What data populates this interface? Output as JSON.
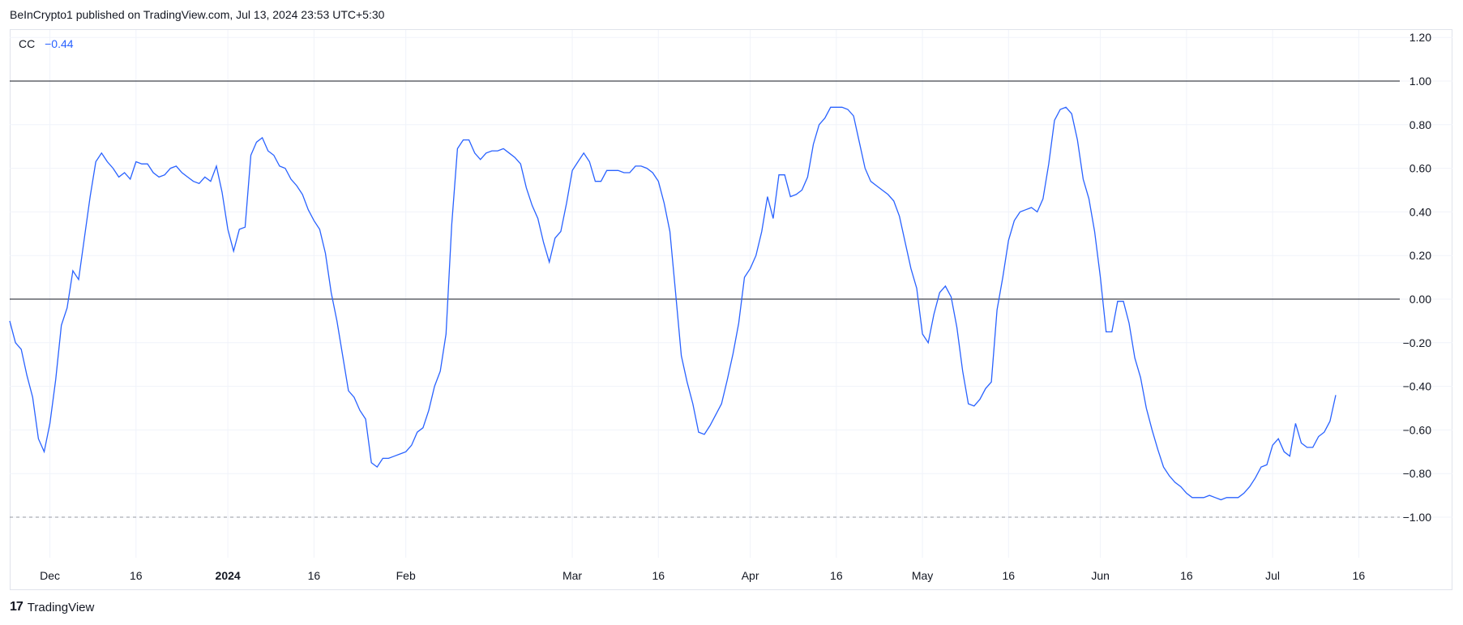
{
  "header": {
    "text": "BeInCrypto1 published on TradingView.com, Jul 13, 2024 23:53 UTC+5:30"
  },
  "legend": {
    "name": "CC",
    "value": "−0.44"
  },
  "footer": {
    "brand": "TradingView",
    "logo_glyph": "17"
  },
  "colors": {
    "line": "#2962ff",
    "grid": "#f0f3fa",
    "border": "#e0e3eb",
    "ref": "#131722",
    "dashed": "#9598a1"
  },
  "chart_data": {
    "type": "line",
    "title": "",
    "xlabel": "",
    "ylabel": "",
    "ylim": [
      -1.3,
      1.3
    ],
    "grid": true,
    "y_ticks": [
      "1.20",
      "1.00",
      "0.80",
      "0.60",
      "0.40",
      "0.20",
      "0.00",
      "−0.20",
      "−0.40",
      "−0.60",
      "−0.80",
      "−1.00"
    ],
    "y_tick_values": [
      1.2,
      1.0,
      0.8,
      0.6,
      0.4,
      0.2,
      0.0,
      -0.2,
      -0.4,
      -0.6,
      -0.8,
      -1.0
    ],
    "x_ticks": [
      "Dec",
      "16",
      "2024",
      "16",
      "Feb",
      "Mar",
      "16",
      "Apr",
      "16",
      "May",
      "16",
      "Jun",
      "16",
      "Jul",
      "16"
    ],
    "x_tick_dates": [
      "2023-12-01",
      "2023-12-16",
      "2024-01-01",
      "2024-01-16",
      "2024-02-01",
      "2024-03-01",
      "2024-03-16",
      "2024-04-01",
      "2024-04-16",
      "2024-05-01",
      "2024-05-16",
      "2024-06-01",
      "2024-06-16",
      "2024-07-01",
      "2024-07-16"
    ],
    "reference_lines": [
      {
        "y": 1.0,
        "style": "solid"
      },
      {
        "y": 0.0,
        "style": "solid"
      },
      {
        "y": -1.0,
        "style": "dashed"
      }
    ],
    "series": [
      {
        "name": "CC",
        "points": [
          [
            "2023-11-24",
            -0.1
          ],
          [
            "2023-11-25",
            -0.2
          ],
          [
            "2023-11-26",
            -0.23
          ],
          [
            "2023-11-27",
            -0.35
          ],
          [
            "2023-11-28",
            -0.45
          ],
          [
            "2023-11-29",
            -0.64
          ],
          [
            "2023-11-30",
            -0.7
          ],
          [
            "2023-12-01",
            -0.57
          ],
          [
            "2023-12-02",
            -0.37
          ],
          [
            "2023-12-03",
            -0.12
          ],
          [
            "2023-12-04",
            -0.04
          ],
          [
            "2023-12-05",
            0.13
          ],
          [
            "2023-12-06",
            0.09
          ],
          [
            "2023-12-07",
            0.28
          ],
          [
            "2023-12-08",
            0.47
          ],
          [
            "2023-12-09",
            0.63
          ],
          [
            "2023-12-10",
            0.67
          ],
          [
            "2023-12-11",
            0.63
          ],
          [
            "2023-12-12",
            0.6
          ],
          [
            "2023-12-13",
            0.56
          ],
          [
            "2023-12-14",
            0.58
          ],
          [
            "2023-12-15",
            0.55
          ],
          [
            "2023-12-16",
            0.63
          ],
          [
            "2023-12-17",
            0.62
          ],
          [
            "2023-12-18",
            0.62
          ],
          [
            "2023-12-19",
            0.58
          ],
          [
            "2023-12-20",
            0.56
          ],
          [
            "2023-12-21",
            0.57
          ],
          [
            "2023-12-22",
            0.6
          ],
          [
            "2023-12-23",
            0.61
          ],
          [
            "2023-12-24",
            0.58
          ],
          [
            "2023-12-25",
            0.56
          ],
          [
            "2023-12-26",
            0.54
          ],
          [
            "2023-12-27",
            0.53
          ],
          [
            "2023-12-28",
            0.56
          ],
          [
            "2023-12-29",
            0.54
          ],
          [
            "2023-12-30",
            0.61
          ],
          [
            "2023-12-31",
            0.49
          ],
          [
            "2024-01-01",
            0.32
          ],
          [
            "2024-01-02",
            0.22
          ],
          [
            "2024-01-03",
            0.32
          ],
          [
            "2024-01-04",
            0.33
          ],
          [
            "2024-01-05",
            0.66
          ],
          [
            "2024-01-06",
            0.72
          ],
          [
            "2024-01-07",
            0.74
          ],
          [
            "2024-01-08",
            0.68
          ],
          [
            "2024-01-09",
            0.66
          ],
          [
            "2024-01-10",
            0.61
          ],
          [
            "2024-01-11",
            0.6
          ],
          [
            "2024-01-12",
            0.55
          ],
          [
            "2024-01-13",
            0.52
          ],
          [
            "2024-01-14",
            0.48
          ],
          [
            "2024-01-15",
            0.41
          ],
          [
            "2024-01-16",
            0.36
          ],
          [
            "2024-01-17",
            0.32
          ],
          [
            "2024-01-18",
            0.21
          ],
          [
            "2024-01-19",
            0.03
          ],
          [
            "2024-01-20",
            -0.1
          ],
          [
            "2024-01-21",
            -0.26
          ],
          [
            "2024-01-22",
            -0.42
          ],
          [
            "2024-01-23",
            -0.45
          ],
          [
            "2024-01-24",
            -0.51
          ],
          [
            "2024-01-25",
            -0.55
          ],
          [
            "2024-01-26",
            -0.75
          ],
          [
            "2024-01-27",
            -0.77
          ],
          [
            "2024-01-28",
            -0.73
          ],
          [
            "2024-01-29",
            -0.73
          ],
          [
            "2024-01-30",
            -0.72
          ],
          [
            "2024-01-31",
            -0.71
          ],
          [
            "2024-02-01",
            -0.7
          ],
          [
            "2024-02-02",
            -0.67
          ],
          [
            "2024-02-03",
            -0.61
          ],
          [
            "2024-02-04",
            -0.59
          ],
          [
            "2024-02-05",
            -0.51
          ],
          [
            "2024-02-06",
            -0.4
          ],
          [
            "2024-02-07",
            -0.33
          ],
          [
            "2024-02-08",
            -0.16
          ],
          [
            "2024-02-09",
            0.34
          ],
          [
            "2024-02-10",
            0.69
          ],
          [
            "2024-02-11",
            0.73
          ],
          [
            "2024-02-12",
            0.73
          ],
          [
            "2024-02-13",
            0.67
          ],
          [
            "2024-02-14",
            0.64
          ],
          [
            "2024-02-15",
            0.67
          ],
          [
            "2024-02-16",
            0.68
          ],
          [
            "2024-02-17",
            0.68
          ],
          [
            "2024-02-18",
            0.69
          ],
          [
            "2024-02-19",
            0.67
          ],
          [
            "2024-02-20",
            0.65
          ],
          [
            "2024-02-21",
            0.62
          ],
          [
            "2024-02-22",
            0.51
          ],
          [
            "2024-02-23",
            0.43
          ],
          [
            "2024-02-24",
            0.37
          ],
          [
            "2024-02-25",
            0.26
          ],
          [
            "2024-02-26",
            0.17
          ],
          [
            "2024-02-27",
            0.28
          ],
          [
            "2024-02-28",
            0.31
          ],
          [
            "2024-02-29",
            0.44
          ],
          [
            "2024-03-01",
            0.59
          ],
          [
            "2024-03-02",
            0.63
          ],
          [
            "2024-03-03",
            0.67
          ],
          [
            "2024-03-04",
            0.63
          ],
          [
            "2024-03-05",
            0.54
          ],
          [
            "2024-03-06",
            0.54
          ],
          [
            "2024-03-07",
            0.59
          ],
          [
            "2024-03-08",
            0.59
          ],
          [
            "2024-03-09",
            0.59
          ],
          [
            "2024-03-10",
            0.58
          ],
          [
            "2024-03-11",
            0.58
          ],
          [
            "2024-03-12",
            0.61
          ],
          [
            "2024-03-13",
            0.61
          ],
          [
            "2024-03-14",
            0.6
          ],
          [
            "2024-03-15",
            0.58
          ],
          [
            "2024-03-16",
            0.54
          ],
          [
            "2024-03-17",
            0.44
          ],
          [
            "2024-03-18",
            0.31
          ],
          [
            "2024-03-19",
            0.03
          ],
          [
            "2024-03-20",
            -0.26
          ],
          [
            "2024-03-21",
            -0.38
          ],
          [
            "2024-03-22",
            -0.48
          ],
          [
            "2024-03-23",
            -0.61
          ],
          [
            "2024-03-24",
            -0.62
          ],
          [
            "2024-03-25",
            -0.58
          ],
          [
            "2024-03-26",
            -0.53
          ],
          [
            "2024-03-27",
            -0.48
          ],
          [
            "2024-03-28",
            -0.37
          ],
          [
            "2024-03-29",
            -0.25
          ],
          [
            "2024-03-30",
            -0.11
          ],
          [
            "2024-03-31",
            0.1
          ],
          [
            "2024-04-01",
            0.14
          ],
          [
            "2024-04-02",
            0.2
          ],
          [
            "2024-04-03",
            0.31
          ],
          [
            "2024-04-04",
            0.47
          ],
          [
            "2024-04-05",
            0.37
          ],
          [
            "2024-04-06",
            0.57
          ],
          [
            "2024-04-07",
            0.57
          ],
          [
            "2024-04-08",
            0.47
          ],
          [
            "2024-04-09",
            0.48
          ],
          [
            "2024-04-10",
            0.5
          ],
          [
            "2024-04-11",
            0.56
          ],
          [
            "2024-04-12",
            0.71
          ],
          [
            "2024-04-13",
            0.8
          ],
          [
            "2024-04-14",
            0.83
          ],
          [
            "2024-04-15",
            0.88
          ],
          [
            "2024-04-16",
            0.88
          ],
          [
            "2024-04-17",
            0.88
          ],
          [
            "2024-04-18",
            0.87
          ],
          [
            "2024-04-19",
            0.84
          ],
          [
            "2024-04-20",
            0.72
          ],
          [
            "2024-04-21",
            0.6
          ],
          [
            "2024-04-22",
            0.54
          ],
          [
            "2024-04-23",
            0.52
          ],
          [
            "2024-04-24",
            0.5
          ],
          [
            "2024-04-25",
            0.48
          ],
          [
            "2024-04-26",
            0.45
          ],
          [
            "2024-04-27",
            0.38
          ],
          [
            "2024-04-28",
            0.26
          ],
          [
            "2024-04-29",
            0.14
          ],
          [
            "2024-04-30",
            0.05
          ],
          [
            "2024-05-01",
            -0.16
          ],
          [
            "2024-05-02",
            -0.2
          ],
          [
            "2024-05-03",
            -0.07
          ],
          [
            "2024-05-04",
            0.03
          ],
          [
            "2024-05-05",
            0.06
          ],
          [
            "2024-05-06",
            0.01
          ],
          [
            "2024-05-07",
            -0.13
          ],
          [
            "2024-05-08",
            -0.33
          ],
          [
            "2024-05-09",
            -0.48
          ],
          [
            "2024-05-10",
            -0.49
          ],
          [
            "2024-05-11",
            -0.46
          ],
          [
            "2024-05-12",
            -0.41
          ],
          [
            "2024-05-13",
            -0.38
          ],
          [
            "2024-05-14",
            -0.05
          ],
          [
            "2024-05-15",
            0.1
          ],
          [
            "2024-05-16",
            0.27
          ],
          [
            "2024-05-17",
            0.36
          ],
          [
            "2024-05-18",
            0.4
          ],
          [
            "2024-05-19",
            0.41
          ],
          [
            "2024-05-20",
            0.42
          ],
          [
            "2024-05-21",
            0.4
          ],
          [
            "2024-05-22",
            0.46
          ],
          [
            "2024-05-23",
            0.62
          ],
          [
            "2024-05-24",
            0.82
          ],
          [
            "2024-05-25",
            0.87
          ],
          [
            "2024-05-26",
            0.88
          ],
          [
            "2024-05-27",
            0.85
          ],
          [
            "2024-05-28",
            0.73
          ],
          [
            "2024-05-29",
            0.55
          ],
          [
            "2024-05-30",
            0.46
          ],
          [
            "2024-05-31",
            0.31
          ],
          [
            "2024-06-01",
            0.1
          ],
          [
            "2024-06-02",
            -0.15
          ],
          [
            "2024-06-03",
            -0.15
          ],
          [
            "2024-06-04",
            -0.01
          ],
          [
            "2024-06-05",
            -0.01
          ],
          [
            "2024-06-06",
            -0.11
          ],
          [
            "2024-06-07",
            -0.27
          ],
          [
            "2024-06-08",
            -0.36
          ],
          [
            "2024-06-09",
            -0.5
          ],
          [
            "2024-06-10",
            -0.6
          ],
          [
            "2024-06-11",
            -0.69
          ],
          [
            "2024-06-12",
            -0.77
          ],
          [
            "2024-06-13",
            -0.81
          ],
          [
            "2024-06-14",
            -0.84
          ],
          [
            "2024-06-15",
            -0.86
          ],
          [
            "2024-06-16",
            -0.89
          ],
          [
            "2024-06-17",
            -0.91
          ],
          [
            "2024-06-18",
            -0.91
          ],
          [
            "2024-06-19",
            -0.91
          ],
          [
            "2024-06-20",
            -0.9
          ],
          [
            "2024-06-21",
            -0.91
          ],
          [
            "2024-06-22",
            -0.92
          ],
          [
            "2024-06-23",
            -0.91
          ],
          [
            "2024-06-24",
            -0.91
          ],
          [
            "2024-06-25",
            -0.91
          ],
          [
            "2024-06-26",
            -0.89
          ],
          [
            "2024-06-27",
            -0.86
          ],
          [
            "2024-06-28",
            -0.82
          ],
          [
            "2024-06-29",
            -0.77
          ],
          [
            "2024-06-30",
            -0.76
          ],
          [
            "2024-07-01",
            -0.67
          ],
          [
            "2024-07-02",
            -0.64
          ],
          [
            "2024-07-03",
            -0.7
          ],
          [
            "2024-07-04",
            -0.72
          ],
          [
            "2024-07-05",
            -0.57
          ],
          [
            "2024-07-06",
            -0.66
          ],
          [
            "2024-07-07",
            -0.68
          ],
          [
            "2024-07-08",
            -0.68
          ],
          [
            "2024-07-09",
            -0.63
          ],
          [
            "2024-07-10",
            -0.61
          ],
          [
            "2024-07-11",
            -0.56
          ],
          [
            "2024-07-12",
            -0.44
          ]
        ]
      }
    ]
  }
}
